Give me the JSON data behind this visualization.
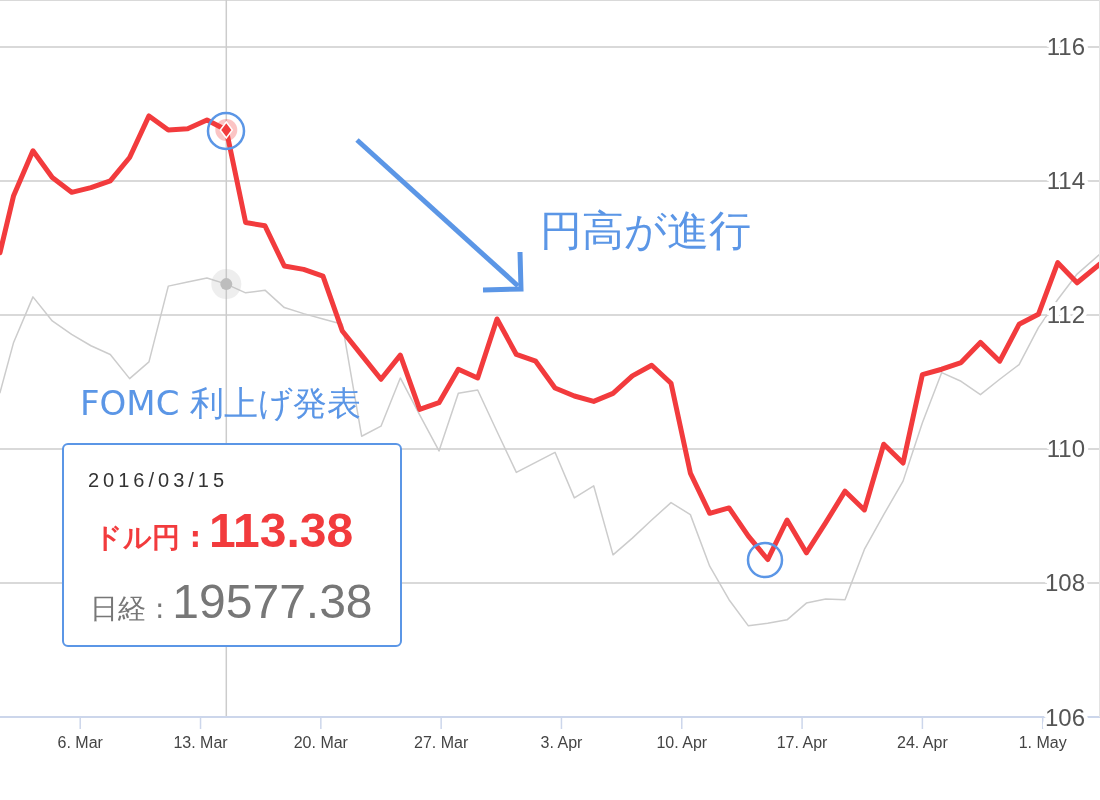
{
  "chart_data": {
    "type": "line",
    "x": [
      "2016-03-01T08:00",
      "2016-03-02T03:00",
      "2016-03-03T06:00",
      "2016-03-04T09:00",
      "2016-03-05T12:00",
      "2016-03-06T15:00",
      "2016-03-07T18:00",
      "2016-03-08T21:00",
      "2016-03-10T00:00",
      "2016-03-11T03:00",
      "2016-03-12T06:00",
      "2016-03-13T09:00",
      "2016-03-14T12:00",
      "2016-03-15T15:00",
      "2016-03-16T18:00",
      "2016-03-17T21:00",
      "2016-03-19T00:00",
      "2016-03-20T03:00",
      "2016-03-21T06:00",
      "2016-03-22T09:00",
      "2016-03-23T12:00",
      "2016-03-24T15:00",
      "2016-03-25T18:00",
      "2016-03-26T21:00",
      "2016-03-28T00:00",
      "2016-03-29T03:00",
      "2016-03-30T06:00",
      "2016-03-31T09:00",
      "2016-04-01T12:00",
      "2016-04-02T15:00",
      "2016-04-03T18:00",
      "2016-04-04T21:00",
      "2016-04-06T00:00",
      "2016-04-07T03:00",
      "2016-04-08T06:00",
      "2016-04-09T09:00",
      "2016-04-10T12:00",
      "2016-04-11T15:00",
      "2016-04-12T18:00",
      "2016-04-13T21:00",
      "2016-04-15T00:00",
      "2016-04-16T03:00",
      "2016-04-17T06:00",
      "2016-04-18T09:00",
      "2016-04-19T12:00",
      "2016-04-20T15:00",
      "2016-04-21T18:00",
      "2016-04-22T21:00",
      "2016-04-24T00:00",
      "2016-04-25T03:00",
      "2016-04-26T06:00",
      "2016-04-27T09:00",
      "2016-04-28T12:00",
      "2016-04-29T15:00",
      "2016-04-30T18:00",
      "2016-05-01T21:00",
      "2016-05-03T00:00",
      "2016-05-04T08:00"
    ],
    "series": [
      {
        "color": "#f23b3d",
        "values": [
          112.93,
          113.78,
          114.45,
          114.05,
          113.83,
          113.9,
          114.0,
          114.35,
          114.97,
          114.76,
          114.78,
          114.91,
          114.76,
          113.38,
          113.33,
          112.73,
          112.68,
          112.58,
          111.76,
          111.4,
          111.04,
          111.4,
          110.59,
          110.69,
          111.19,
          111.06,
          111.94,
          111.41,
          111.31,
          110.91,
          110.79,
          110.71,
          110.83,
          111.09,
          111.25,
          110.98,
          109.64,
          109.04,
          109.12,
          108.7,
          108.35,
          108.94,
          108.45,
          108.9,
          109.37,
          109.09,
          110.07,
          109.79,
          111.11,
          111.19,
          111.29,
          111.59,
          111.31,
          111.86,
          112.01,
          112.78,
          112.48,
          112.76
        ]
      },
      {
        "color": "#cccccc",
        "values": [
          110.84,
          111.59,
          112.27,
          111.91,
          111.71,
          111.54,
          111.41,
          111.05,
          111.3,
          112.43,
          112.49,
          112.55,
          112.46,
          112.33,
          112.37,
          112.11,
          112.02,
          111.94,
          111.86,
          110.19,
          110.34,
          111.06,
          110.51,
          109.97,
          110.83,
          110.88,
          110.26,
          109.65,
          109.8,
          109.95,
          109.27,
          109.45,
          108.42,
          108.67,
          108.94,
          109.2,
          109.02,
          108.25,
          107.75,
          107.36,
          107.4,
          107.45,
          107.7,
          107.76,
          107.75,
          108.5,
          109.02,
          109.52,
          110.39,
          111.14,
          111.01,
          110.81,
          111.04,
          111.26,
          111.81,
          112.23,
          112.61,
          112.91
        ]
      },
      {
        "type": "scatter",
        "marker": "diamond",
        "color": "#f23b3d",
        "x": [
          "2016-03-14T12:00"
        ],
        "values": [
          114.76
        ]
      },
      {
        "type": "scatter",
        "marker": "circle",
        "color": "#bdbdbd",
        "x": [
          "2016-03-14T12:00"
        ],
        "values": [
          112.46
        ]
      }
    ],
    "marker": "none",
    "xlim": [
      "2016-03-01T08:00",
      "2016-05-04T08:00"
    ],
    "xticks": [
      {
        "value": "2016-03-06",
        "label": "6. Mar"
      },
      {
        "value": "2016-03-13",
        "label": "13. Mar"
      },
      {
        "value": "2016-03-20",
        "label": "20. Mar"
      },
      {
        "value": "2016-03-27",
        "label": "27. Mar"
      },
      {
        "value": "2016-04-03",
        "label": "3. Apr"
      },
      {
        "value": "2016-04-10",
        "label": "10. Apr"
      },
      {
        "value": "2016-04-17",
        "label": "17. Apr"
      },
      {
        "value": "2016-04-24",
        "label": "24. Apr"
      },
      {
        "value": "2016-05-01",
        "label": "1. May"
      }
    ],
    "ylim": [
      106,
      116.7
    ],
    "yticks": [
      106,
      108,
      110,
      112,
      114,
      116
    ],
    "grid": "y",
    "ref_lines": [
      {
        "axis": "x",
        "value": "2016-03-14T12:00",
        "color": "#cccccc"
      }
    ],
    "annotations": [
      "FOMC 利上げ発表",
      "円高が進行",
      "2016/03/15",
      "ドル円 :",
      "113.38",
      "日経 :",
      "19577.38"
    ]
  }
}
